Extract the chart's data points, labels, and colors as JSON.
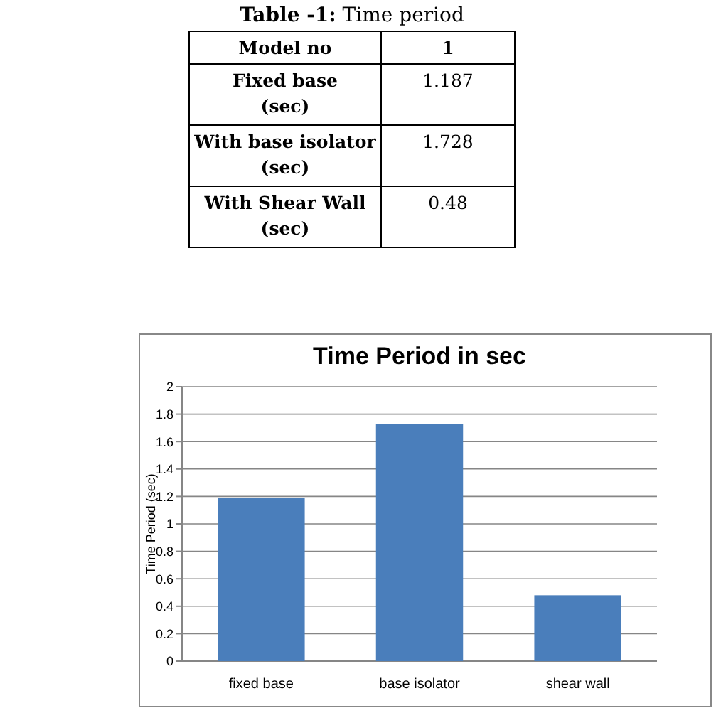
{
  "chart_data": [
    {
      "type": "other",
      "title": "Table -1: Time period",
      "annotations": [
        "Model no",
        "1",
        "Fixed base\n(sec)",
        "1.187",
        "With base isolator\n(sec)",
        "1.728",
        "With Shear Wall\n(sec)",
        "0.48"
      ]
    },
    {
      "type": "bar",
      "title": "Time Period in sec",
      "ylabel": "Time Period  (sec)",
      "categories": [
        "fixed base",
        "base isolator",
        "shear wall"
      ],
      "values": [
        1.19,
        1.73,
        0.48
      ],
      "color": "#4a7ebb",
      "ylim": [
        0,
        2
      ],
      "yticks": [
        0,
        0.2,
        0.4,
        0.6,
        0.8,
        1,
        1.2,
        1.4,
        1.6,
        1.8,
        2
      ],
      "grid": "y"
    }
  ]
}
